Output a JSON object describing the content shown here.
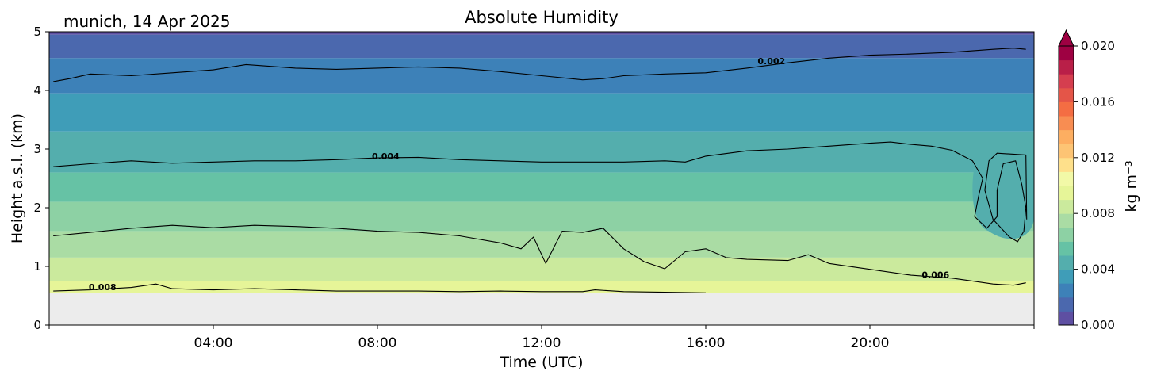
{
  "chart_data": {
    "type": "heatmap",
    "title": "Absolute Humidity",
    "location_date": "munich, 14 Apr 2025",
    "xlabel": "Time (UTC)",
    "ylabel": "Height a.s.l. (km)",
    "xlim_hours": [
      0,
      24
    ],
    "ylim_km": [
      0,
      5
    ],
    "x_ticks": [
      {
        "hour": 4,
        "label": "04:00"
      },
      {
        "hour": 8,
        "label": "08:00"
      },
      {
        "hour": 12,
        "label": "12:00"
      },
      {
        "hour": 16,
        "label": "16:00"
      },
      {
        "hour": 20,
        "label": "20:00"
      }
    ],
    "y_ticks": [
      {
        "value": 0,
        "label": "0"
      },
      {
        "value": 1,
        "label": "1"
      },
      {
        "value": 2,
        "label": "2"
      },
      {
        "value": 3,
        "label": "3"
      },
      {
        "value": 4,
        "label": "4"
      },
      {
        "value": 5,
        "label": "5"
      }
    ],
    "no_data_below_km": 0.55,
    "no_data_color": "#ececec",
    "colorbar": {
      "label": "kg m⁻³",
      "range": [
        0.0,
        0.02
      ],
      "extend": "max",
      "ticks": [
        {
          "value": 0.0,
          "label": "0.000"
        },
        {
          "value": 0.004,
          "label": "0.004"
        },
        {
          "value": 0.008,
          "label": "0.008"
        },
        {
          "value": 0.012,
          "label": "0.012"
        },
        {
          "value": 0.016,
          "label": "0.016"
        },
        {
          "value": 0.02,
          "label": "0.020"
        }
      ],
      "colors": [
        "#5e4fa2",
        "#4b68ae",
        "#3d81b8",
        "#3f9db8",
        "#54aead",
        "#66c2a5",
        "#8dd1a4",
        "#aadca4",
        "#cbea9d",
        "#e6f598",
        "#f2f9a7",
        "#fee08b",
        "#fdc474",
        "#fdae61",
        "#f88d52",
        "#f46d43",
        "#e45548",
        "#d53e4f",
        "#b91f48",
        "#9e0142"
      ]
    },
    "contours": [
      {
        "level": 0.002,
        "label": "0.002",
        "label_hour": 17.6,
        "label_km": 4.5,
        "points": [
          [
            0.1,
            4.15
          ],
          [
            0.5,
            4.2
          ],
          [
            1,
            4.28
          ],
          [
            2,
            4.25
          ],
          [
            3,
            4.3
          ],
          [
            4,
            4.35
          ],
          [
            4.8,
            4.44
          ],
          [
            6,
            4.38
          ],
          [
            7,
            4.36
          ],
          [
            8,
            4.38
          ],
          [
            9,
            4.4
          ],
          [
            10,
            4.38
          ],
          [
            11,
            4.32
          ],
          [
            12,
            4.25
          ],
          [
            13,
            4.18
          ],
          [
            13.5,
            4.2
          ],
          [
            14,
            4.25
          ],
          [
            15,
            4.28
          ],
          [
            16,
            4.3
          ],
          [
            17,
            4.38
          ],
          [
            18,
            4.47
          ],
          [
            19,
            4.55
          ],
          [
            20,
            4.6
          ],
          [
            21,
            4.62
          ],
          [
            22,
            4.65
          ],
          [
            23,
            4.7
          ],
          [
            23.5,
            4.72
          ],
          [
            23.8,
            4.7
          ]
        ]
      },
      {
        "level": 0.004,
        "label": "0.004",
        "label_hour": 8.2,
        "label_km": 2.88,
        "points": [
          [
            0.1,
            2.7
          ],
          [
            1,
            2.75
          ],
          [
            2,
            2.8
          ],
          [
            3,
            2.76
          ],
          [
            4,
            2.78
          ],
          [
            5,
            2.8
          ],
          [
            6,
            2.8
          ],
          [
            7,
            2.82
          ],
          [
            8,
            2.85
          ],
          [
            9,
            2.86
          ],
          [
            10,
            2.82
          ],
          [
            11,
            2.8
          ],
          [
            12,
            2.78
          ],
          [
            13,
            2.78
          ],
          [
            14,
            2.78
          ],
          [
            15,
            2.8
          ],
          [
            15.5,
            2.78
          ],
          [
            16,
            2.88
          ],
          [
            17,
            2.97
          ],
          [
            18,
            3.0
          ],
          [
            19,
            3.05
          ],
          [
            20,
            3.1
          ],
          [
            20.5,
            3.12
          ],
          [
            21,
            3.08
          ],
          [
            21.5,
            3.05
          ],
          [
            22,
            2.98
          ],
          [
            22.5,
            2.8
          ],
          [
            22.75,
            2.5
          ],
          [
            22.65,
            2.2
          ],
          [
            22.55,
            1.85
          ],
          [
            22.85,
            1.65
          ],
          [
            23.1,
            1.85
          ],
          [
            23.1,
            2.3
          ],
          [
            23.25,
            2.75
          ],
          [
            23.55,
            2.8
          ],
          [
            23.7,
            2.4
          ],
          [
            23.8,
            2.0
          ],
          [
            23.75,
            1.6
          ],
          [
            23.6,
            1.42
          ],
          [
            23.4,
            1.5
          ],
          [
            23.0,
            1.8
          ],
          [
            22.8,
            2.3
          ],
          [
            22.9,
            2.8
          ],
          [
            23.1,
            2.93
          ],
          [
            23.8,
            2.9
          ],
          [
            23.82,
            1.8
          ]
        ]
      },
      {
        "level": 0.006,
        "label": "0.006",
        "label_hour": 21.6,
        "label_km": 0.86,
        "points": [
          [
            0.1,
            1.52
          ],
          [
            1,
            1.58
          ],
          [
            2,
            1.65
          ],
          [
            3,
            1.7
          ],
          [
            4,
            1.66
          ],
          [
            5,
            1.7
          ],
          [
            6,
            1.68
          ],
          [
            7,
            1.65
          ],
          [
            8,
            1.6
          ],
          [
            9,
            1.58
          ],
          [
            10,
            1.52
          ],
          [
            11,
            1.4
          ],
          [
            11.5,
            1.3
          ],
          [
            11.8,
            1.5
          ],
          [
            12.1,
            1.05
          ],
          [
            12.5,
            1.6
          ],
          [
            13,
            1.58
          ],
          [
            13.5,
            1.65
          ],
          [
            14,
            1.3
          ],
          [
            14.5,
            1.08
          ],
          [
            15,
            0.96
          ],
          [
            15.5,
            1.25
          ],
          [
            16,
            1.3
          ],
          [
            16.5,
            1.15
          ],
          [
            17,
            1.12
          ],
          [
            18,
            1.1
          ],
          [
            18.5,
            1.2
          ],
          [
            19,
            1.05
          ],
          [
            20,
            0.95
          ],
          [
            21,
            0.85
          ],
          [
            22,
            0.8
          ],
          [
            23,
            0.7
          ],
          [
            23.5,
            0.68
          ],
          [
            23.8,
            0.72
          ]
        ]
      },
      {
        "level": 0.008,
        "label": "0.008",
        "label_hour": 1.3,
        "label_km": 0.65,
        "points": [
          [
            0.1,
            0.58
          ],
          [
            1,
            0.6
          ],
          [
            2,
            0.64
          ],
          [
            2.6,
            0.7
          ],
          [
            3,
            0.62
          ],
          [
            4,
            0.6
          ],
          [
            5,
            0.62
          ],
          [
            6,
            0.6
          ],
          [
            7,
            0.58
          ],
          [
            8,
            0.58
          ],
          [
            9,
            0.58
          ],
          [
            10,
            0.57
          ],
          [
            11,
            0.58
          ],
          [
            12,
            0.57
          ],
          [
            13,
            0.57
          ],
          [
            13.3,
            0.6
          ],
          [
            14,
            0.57
          ],
          [
            15,
            0.56
          ],
          [
            16,
            0.55
          ]
        ]
      }
    ]
  }
}
